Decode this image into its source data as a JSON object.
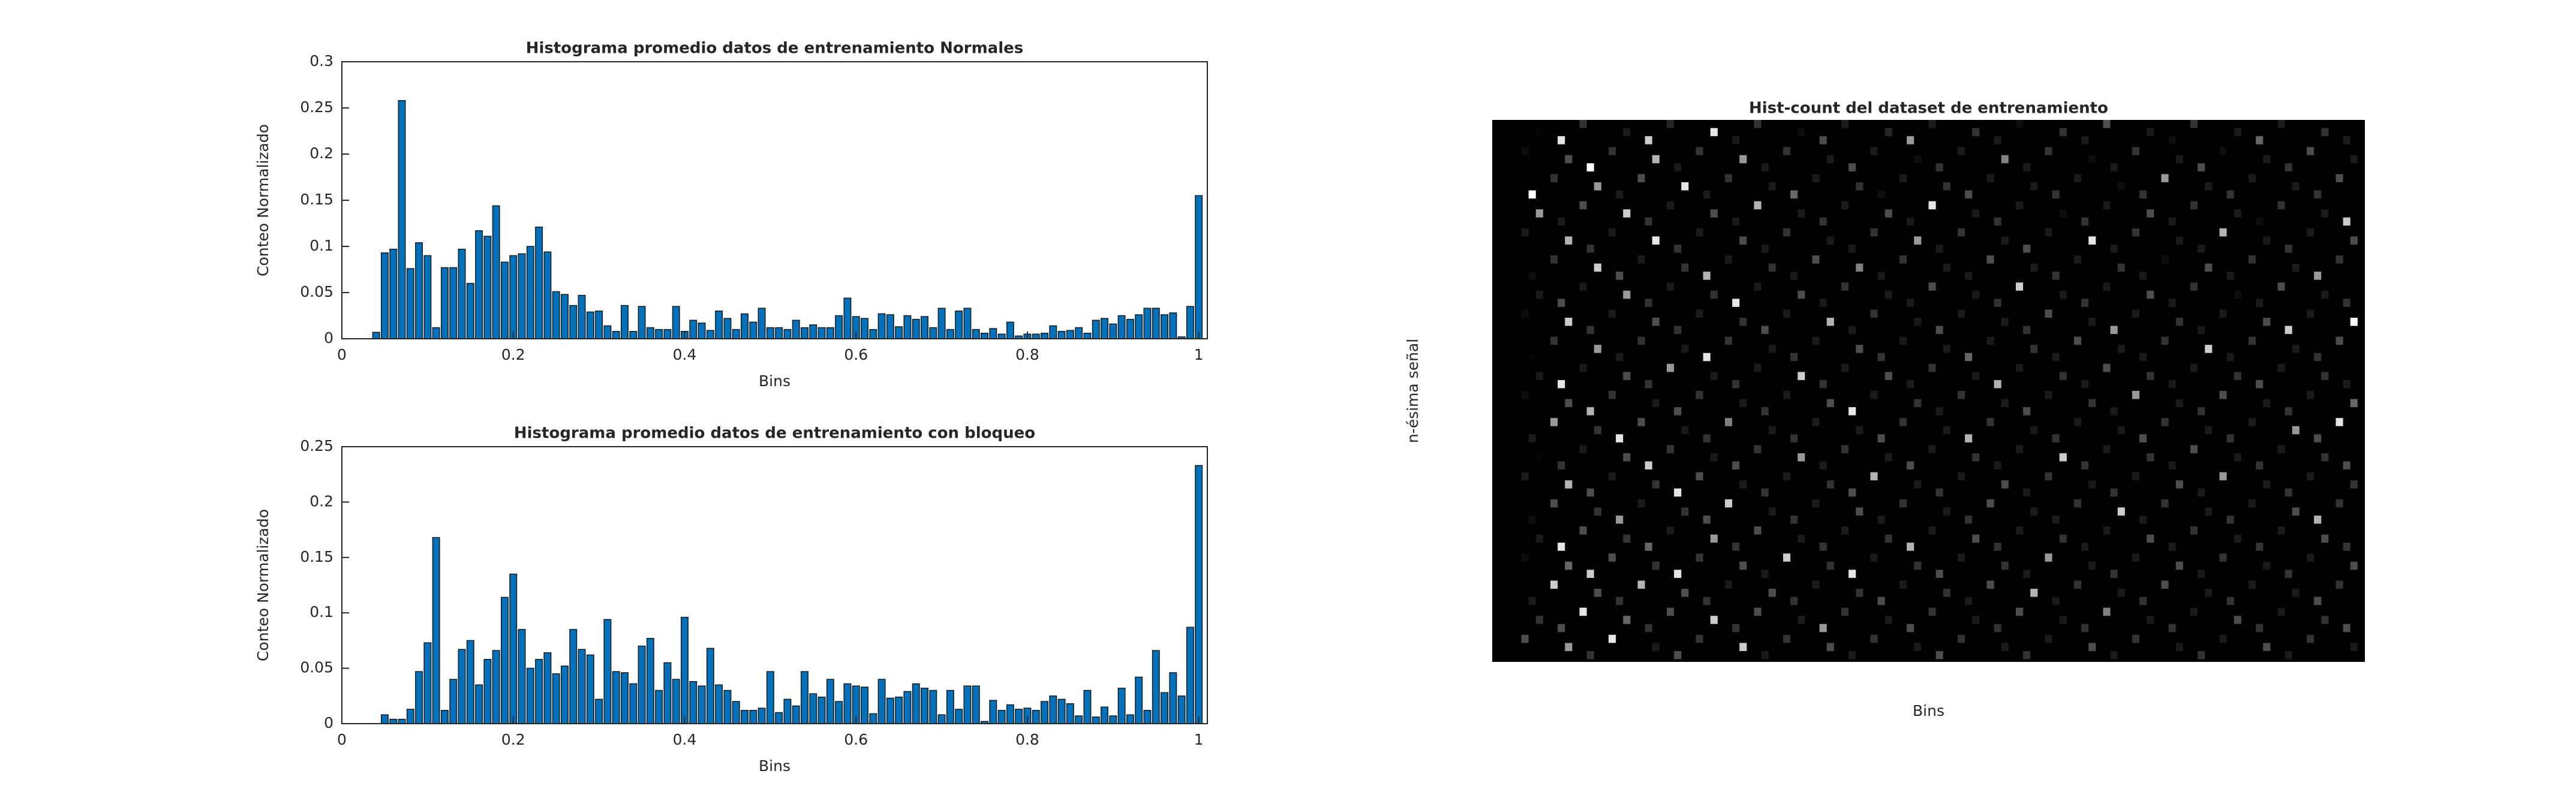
{
  "chart_data": [
    {
      "type": "bar",
      "title": "Histograma promedio datos de entrenamiento Normales",
      "xlabel": "Bins",
      "ylabel": "Conteo Normalizado",
      "color": "#0072bd",
      "x": [
        0,
        0.01,
        0.02,
        0.03,
        0.04,
        0.05,
        0.06,
        0.07,
        0.08,
        0.09,
        0.1,
        0.11,
        0.12,
        0.13,
        0.14,
        0.15,
        0.16,
        0.17,
        0.18,
        0.19,
        0.2,
        0.21,
        0.22,
        0.23,
        0.24,
        0.25,
        0.26,
        0.27,
        0.28,
        0.29,
        0.3,
        0.31,
        0.32,
        0.33,
        0.34,
        0.35,
        0.36,
        0.37,
        0.38,
        0.39,
        0.4,
        0.41,
        0.42,
        0.43,
        0.44,
        0.45,
        0.46,
        0.47,
        0.48,
        0.49,
        0.5,
        0.51,
        0.52,
        0.53,
        0.54,
        0.55,
        0.56,
        0.57,
        0.58,
        0.59,
        0.6,
        0.61,
        0.62,
        0.63,
        0.64,
        0.65,
        0.66,
        0.67,
        0.68,
        0.69,
        0.7,
        0.71,
        0.72,
        0.73,
        0.74,
        0.75,
        0.76,
        0.77,
        0.78,
        0.79,
        0.8,
        0.81,
        0.82,
        0.83,
        0.84,
        0.85,
        0.86,
        0.87,
        0.88,
        0.89,
        0.9,
        0.91,
        0.92,
        0.93,
        0.94,
        0.95,
        0.96,
        0.97,
        0.98,
        0.99,
        1
      ],
      "values": [
        0,
        0,
        0,
        0,
        0.007,
        0.093,
        0.097,
        0.258,
        0.076,
        0.104,
        0.09,
        0.012,
        0.077,
        0.077,
        0.097,
        0.06,
        0.117,
        0.111,
        0.144,
        0.083,
        0.09,
        0.092,
        0.1,
        0.121,
        0.094,
        0.051,
        0.048,
        0.036,
        0.047,
        0.029,
        0.03,
        0.014,
        0.008,
        0.036,
        0.008,
        0.035,
        0.012,
        0.01,
        0.01,
        0.035,
        0.008,
        0.02,
        0.017,
        0.009,
        0.03,
        0.022,
        0.01,
        0.027,
        0.018,
        0.033,
        0.012,
        0.012,
        0.01,
        0.02,
        0.012,
        0.015,
        0.012,
        0.012,
        0.025,
        0.044,
        0.024,
        0.022,
        0.01,
        0.027,
        0.026,
        0.013,
        0.025,
        0.021,
        0.024,
        0.012,
        0.033,
        0.01,
        0.03,
        0.033,
        0.01,
        0.006,
        0.011,
        0.005,
        0.018,
        0.003,
        0.005,
        0.005,
        0.006,
        0.014,
        0.008,
        0.009,
        0.012,
        0.006,
        0.02,
        0.022,
        0.016,
        0.025,
        0.021,
        0.026,
        0.033,
        0.033,
        0.026,
        0.028,
        0.002,
        0.035,
        0.155
      ],
      "xlim": [
        0,
        1.01
      ],
      "ylim": [
        0,
        0.3
      ],
      "xticks": [
        0,
        0.2,
        0.4,
        0.6,
        0.8,
        1
      ],
      "yticks": [
        0,
        0.05,
        0.1,
        0.15,
        0.2,
        0.25,
        0.3
      ]
    },
    {
      "type": "bar",
      "title": "Histograma promedio datos de entrenamiento con bloqueo",
      "xlabel": "Bins",
      "ylabel": "Conteo Normalizado",
      "color": "#0072bd",
      "x": [
        0,
        0.01,
        0.02,
        0.03,
        0.04,
        0.05,
        0.06,
        0.07,
        0.08,
        0.09,
        0.1,
        0.11,
        0.12,
        0.13,
        0.14,
        0.15,
        0.16,
        0.17,
        0.18,
        0.19,
        0.2,
        0.21,
        0.22,
        0.23,
        0.24,
        0.25,
        0.26,
        0.27,
        0.28,
        0.29,
        0.3,
        0.31,
        0.32,
        0.33,
        0.34,
        0.35,
        0.36,
        0.37,
        0.38,
        0.39,
        0.4,
        0.41,
        0.42,
        0.43,
        0.44,
        0.45,
        0.46,
        0.47,
        0.48,
        0.49,
        0.5,
        0.51,
        0.52,
        0.53,
        0.54,
        0.55,
        0.56,
        0.57,
        0.58,
        0.59,
        0.6,
        0.61,
        0.62,
        0.63,
        0.64,
        0.65,
        0.66,
        0.67,
        0.68,
        0.69,
        0.7,
        0.71,
        0.72,
        0.73,
        0.74,
        0.75,
        0.76,
        0.77,
        0.78,
        0.79,
        0.8,
        0.81,
        0.82,
        0.83,
        0.84,
        0.85,
        0.86,
        0.87,
        0.88,
        0.89,
        0.9,
        0.91,
        0.92,
        0.93,
        0.94,
        0.95,
        0.96,
        0.97,
        0.98,
        0.99,
        1
      ],
      "values": [
        0,
        0,
        0,
        0,
        0,
        0.008,
        0.004,
        0.004,
        0.013,
        0.047,
        0.073,
        0.168,
        0.012,
        0.04,
        0.067,
        0.075,
        0.035,
        0.058,
        0.066,
        0.114,
        0.135,
        0.085,
        0.05,
        0.058,
        0.064,
        0.045,
        0.052,
        0.085,
        0.067,
        0.062,
        0.022,
        0.094,
        0.047,
        0.046,
        0.036,
        0.07,
        0.077,
        0.03,
        0.055,
        0.04,
        0.096,
        0.038,
        0.034,
        0.068,
        0.035,
        0.03,
        0.02,
        0.012,
        0.012,
        0.014,
        0.047,
        0.01,
        0.022,
        0.016,
        0.047,
        0.027,
        0.024,
        0.04,
        0.02,
        0.036,
        0.034,
        0.033,
        0.009,
        0.04,
        0.023,
        0.024,
        0.029,
        0.036,
        0.032,
        0.03,
        0.008,
        0.03,
        0.013,
        0.034,
        0.034,
        0.002,
        0.021,
        0.012,
        0.017,
        0.013,
        0.014,
        0.012,
        0.02,
        0.025,
        0.022,
        0.018,
        0.007,
        0.03,
        0.006,
        0.015,
        0.007,
        0.032,
        0.008,
        0.042,
        0.012,
        0.066,
        0.028,
        0.046,
        0.025,
        0.087,
        0.233
      ],
      "xlim": [
        0,
        1.01
      ],
      "ylim": [
        0,
        0.25
      ],
      "xticks": [
        0,
        0.2,
        0.4,
        0.6,
        0.8,
        1
      ],
      "yticks": [
        0,
        0.05,
        0.1,
        0.15,
        0.2,
        0.25
      ]
    },
    {
      "type": "heatmap",
      "title": "Hist-count del dataset de entrenamiento",
      "xlabel": "Bins",
      "ylabel": "n-ésima señal",
      "z": [
        [
          0,
          0.02,
          0.9,
          0.2,
          0.1,
          0.8,
          0.15,
          0.9,
          0.1,
          0.2,
          0.05,
          0.3,
          0.1,
          0.15,
          0.6,
          0.1,
          0.2,
          0.1,
          0.05,
          0.2,
          0.1,
          0.3,
          0.1,
          0.05,
          0.2,
          0.1,
          0.4,
          0.1,
          0.2,
          0.1
        ],
        [
          0,
          0.05,
          0.3,
          1,
          0.2,
          0.7,
          0.1,
          0.2,
          0.6,
          0.1,
          0.2,
          0.1,
          0.3,
          0.1,
          0.05,
          0.2,
          0.1,
          0.5,
          0.1,
          0.2,
          0.05,
          0.1,
          0.2,
          0.1,
          0.3,
          0.05,
          0.1,
          0.2,
          0.3,
          0.1
        ],
        [
          0,
          1,
          0.2,
          0.6,
          0.1,
          0.3,
          0.9,
          0.1,
          0.2,
          0.1,
          0.4,
          0.1,
          0.2,
          0.05,
          0.1,
          0.2,
          0.3,
          0.1,
          0.1,
          0.2,
          0.1,
          0.05,
          0.2,
          0.6,
          0.1,
          0.2,
          0.1,
          0.1,
          0.2,
          0.3
        ],
        [
          0,
          0.6,
          0.1,
          0.3,
          0.8,
          0.2,
          0.1,
          0.3,
          0.1,
          0.7,
          0.1,
          0.2,
          0.1,
          0.3,
          0.1,
          0.9,
          0.1,
          0.2,
          0.1,
          0.05,
          0.2,
          0.1,
          0.3,
          0.1,
          0.2,
          0.1,
          0.05,
          0.2,
          0.1,
          0.8
        ],
        [
          0,
          0.1,
          0.7,
          0.2,
          0.1,
          0.9,
          0.2,
          0.1,
          0.3,
          0.1,
          0.2,
          0.1,
          0.1,
          0.2,
          0.6,
          0.1,
          0.2,
          0.1,
          0.3,
          0.1,
          0.9,
          0.1,
          0.2,
          0.1,
          0.1,
          0.7,
          0.1,
          0.2,
          0.1,
          0.3
        ],
        [
          0,
          0.05,
          0.2,
          0.8,
          0.3,
          0.1,
          0.2,
          0.7,
          0.1,
          0.2,
          0.1,
          0.3,
          0.5,
          0.1,
          0.2,
          0.1,
          0.1,
          0.3,
          0.1,
          0.2,
          0.1,
          0.2,
          0.1,
          0.05,
          0.3,
          0.1,
          0.2,
          0.1,
          0.6,
          0.2
        ],
        [
          0,
          0.1,
          0.3,
          0.1,
          0.6,
          0.2,
          0.1,
          0.2,
          0.9,
          0.1,
          0.3,
          0.1,
          0.2,
          0.1,
          0.1,
          0.3,
          0.1,
          0.2,
          0.8,
          0.1,
          0.2,
          0.1,
          0.3,
          0.1,
          0.2,
          0.05,
          0.1,
          0.3,
          0.1,
          0.2
        ],
        [
          0,
          0.05,
          0.8,
          0.2,
          0.1,
          0.3,
          0.2,
          0.1,
          0.2,
          0.3,
          0.1,
          0.7,
          0.1,
          0.2,
          0.1,
          0.3,
          0.1,
          0.1,
          0.2,
          0.3,
          0.1,
          0.6,
          0.1,
          0.2,
          0.1,
          0.1,
          0.3,
          0.8,
          0.1,
          1
        ],
        [
          0,
          0.02,
          0.2,
          0.6,
          0.1,
          0.2,
          0.1,
          0.9,
          0.2,
          0.1,
          0.2,
          0.1,
          0.3,
          0.2,
          0.1,
          0.1,
          0.4,
          0.1,
          0.2,
          0.1,
          0.3,
          0.1,
          0.1,
          0.2,
          0.8,
          0.1,
          0.2,
          0.1,
          0.2,
          0.3
        ],
        [
          0,
          0.1,
          0.9,
          0.1,
          0.3,
          0.2,
          0.6,
          0.1,
          0.2,
          0.1,
          0.8,
          0.2,
          0.1,
          0.3,
          0.1,
          0.2,
          0.1,
          0.7,
          0.1,
          0.2,
          0.1,
          0.3,
          0.2,
          0.1,
          0.1,
          0.2,
          0.3,
          0.1,
          0.2,
          0.1
        ],
        [
          0,
          0.05,
          0.3,
          0.7,
          0.2,
          0.1,
          0.3,
          0.2,
          0.1,
          0.2,
          0.1,
          0.3,
          0.9,
          0.1,
          0.2,
          0.1,
          0.2,
          0.1,
          0.3,
          0.1,
          0.2,
          0.1,
          0.6,
          0.1,
          0.2,
          0.3,
          0.1,
          0.2,
          0.1,
          0.4
        ],
        [
          0,
          0.1,
          0.6,
          0.2,
          0.9,
          0.3,
          0.1,
          0.2,
          0.5,
          0.1,
          0.2,
          0.1,
          0.1,
          0.3,
          0.2,
          0.1,
          0.7,
          0.2,
          0.1,
          0.2,
          0.1,
          0.1,
          0.3,
          0.2,
          0.1,
          0.2,
          0.1,
          0.6,
          0.3,
          0.9
        ],
        [
          0,
          0.02,
          0.2,
          0.1,
          0.3,
          0.8,
          0.2,
          0.1,
          0.3,
          0.2,
          0.6,
          0.1,
          0.2,
          0.1,
          0.3,
          0.1,
          0.2,
          0.1,
          0.1,
          0.8,
          0.2,
          0.1,
          0.2,
          0.1,
          0.3,
          0.1,
          0.2,
          0.1,
          0.2,
          0.3
        ],
        [
          0,
          0.1,
          0.7,
          0.3,
          0.1,
          0.2,
          0.9,
          0.3,
          0.1,
          0.2,
          0.1,
          0.2,
          0.3,
          0.7,
          0.1,
          0.2,
          0.1,
          0.3,
          0.1,
          0.2,
          0.1,
          0.2,
          0.1,
          0.3,
          0.1,
          0.6,
          0.1,
          0.2,
          0.1,
          0.2
        ],
        [
          0,
          0.05,
          0.3,
          0.2,
          0.6,
          0.1,
          0.2,
          0.3,
          0.8,
          0.1,
          0.2,
          0.1,
          0.3,
          0.1,
          0.2,
          0.1,
          0.2,
          0.3,
          0.1,
          0.1,
          0.2,
          0.8,
          0.1,
          0.2,
          0.1,
          0.2,
          0.1,
          0.3,
          0.7,
          0.2
        ],
        [
          0,
          0.1,
          0.9,
          0.3,
          0.2,
          0.4,
          0.1,
          0.6,
          0.2,
          0.3,
          0.1,
          0.2,
          0.1,
          0.2,
          0.7,
          0.1,
          0.3,
          0.2,
          0.1,
          0.2,
          0.1,
          0.1,
          0.3,
          0.1,
          0.2,
          0.1,
          0.2,
          0.1,
          0.3,
          0.2
        ],
        [
          0,
          0.05,
          0.4,
          0.8,
          0.3,
          0.2,
          0.9,
          0.2,
          0.3,
          0.1,
          0.8,
          0.2,
          0.9,
          0.1,
          0.2,
          0.3,
          0.1,
          0.2,
          0.1,
          0.6,
          0.1,
          0.2,
          0.1,
          0.3,
          0.1,
          0.2,
          0.1,
          0.2,
          0.1,
          0.3
        ],
        [
          0,
          0.1,
          0.8,
          0.3,
          0.2,
          0.7,
          0.3,
          0.2,
          0.1,
          0.3,
          0.2,
          0.1,
          0.2,
          0.3,
          0.1,
          0.2,
          0.1,
          0.3,
          0.7,
          0.1,
          0.2,
          0.1,
          0.2,
          0.3,
          0.1,
          0.2,
          0.1,
          0.1,
          0.3,
          0.2
        ],
        [
          0,
          0.2,
          0.3,
          0.9,
          0.4,
          0.2,
          0.3,
          0.8,
          0.2,
          0.3,
          0.1,
          0.6,
          0.2,
          0.1,
          0.3,
          0.2,
          0.1,
          0.2,
          0.3,
          0.1,
          0.2,
          0.5,
          0.1,
          0.2,
          0.1,
          0.3,
          0.2,
          0.1,
          0.2,
          0.3
        ],
        [
          0,
          0.3,
          0.6,
          0.2,
          0.9,
          0.1,
          0.3,
          0.2,
          0.8,
          0.1,
          0.2,
          0.3,
          0.1,
          0.2,
          0.1,
          0.3,
          0.2,
          0.1,
          0.2,
          0.1,
          0.3,
          0.1,
          0.2,
          0.1,
          0.2,
          0.1,
          0.3,
          0.1,
          0.2,
          0.1
        ]
      ]
    }
  ]
}
